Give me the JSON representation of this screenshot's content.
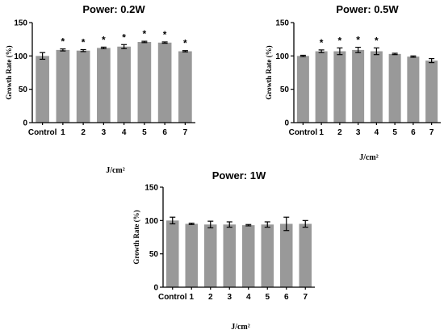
{
  "chart_data": [
    {
      "type": "bar",
      "title": "Power: 0.2W",
      "categories": [
        "Control",
        "1",
        "2",
        "3",
        "4",
        "5",
        "6",
        "7"
      ],
      "values": [
        100,
        109,
        108,
        112,
        114,
        121,
        120,
        107
      ],
      "errors": [
        5,
        1.5,
        1.5,
        1.2,
        3,
        1,
        1,
        1
      ],
      "significant": [
        "",
        "*",
        "*",
        "*",
        "*",
        "*",
        "*",
        "*"
      ],
      "ylabel": "Growth Rate (%)",
      "xlabel": "J/cm²",
      "ylim": [
        0,
        150
      ],
      "yticks": [
        "0",
        "50",
        "100",
        "150"
      ],
      "grid": false,
      "bar_color": "#999999"
    },
    {
      "type": "bar",
      "title": "Power: 0.5W",
      "categories": [
        "Control",
        "1",
        "2",
        "3",
        "4",
        "5",
        "6",
        "7"
      ],
      "values": [
        100,
        107,
        107,
        109,
        107,
        103,
        99,
        93
      ],
      "errors": [
        1,
        2,
        5,
        4,
        5,
        1,
        1,
        3
      ],
      "significant": [
        "",
        "*",
        "*",
        "*",
        "*",
        "",
        "",
        ""
      ],
      "ylabel": "Growth Rate (%)",
      "xlabel": "J/cm²",
      "ylim": [
        0,
        150
      ],
      "yticks": [
        "0",
        "50",
        "100",
        "150"
      ],
      "grid": false,
      "bar_color": "#999999"
    },
    {
      "type": "bar",
      "title": "Power: 1W",
      "categories": [
        "Control",
        "1",
        "2",
        "3",
        "4",
        "5",
        "6",
        "7"
      ],
      "values": [
        100,
        95,
        94,
        94,
        93,
        94,
        95,
        95
      ],
      "errors": [
        5,
        1,
        5,
        4,
        1,
        4,
        10,
        5
      ],
      "significant": [
        "",
        "",
        "",
        "",
        "",
        "",
        "",
        ""
      ],
      "ylabel": "Growth Rate (%)",
      "xlabel": "J/cm²",
      "ylim": [
        0,
        150
      ],
      "yticks": [
        "0",
        "50",
        "100",
        "150"
      ],
      "grid": false,
      "bar_color": "#999999"
    }
  ]
}
